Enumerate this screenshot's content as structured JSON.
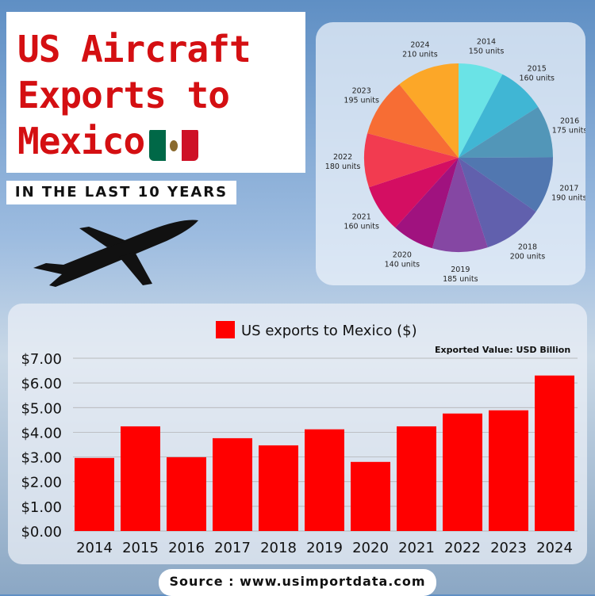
{
  "title": {
    "line1": "US Aircraft",
    "line2": "Exports to",
    "line3": "Mexico"
  },
  "subtitle": "IN THE LAST 10 YEARS",
  "source": "Source : www.usimportdata.com",
  "chart_data": [
    {
      "type": "pie",
      "title": "",
      "unit": "units",
      "categories": [
        "2014",
        "2015",
        "2016",
        "2017",
        "2018",
        "2019",
        "2020",
        "2021",
        "2022",
        "2023",
        "2024"
      ],
      "values": [
        150,
        160,
        175,
        190,
        200,
        185,
        140,
        160,
        180,
        195,
        210
      ],
      "labels": [
        "150 units",
        "160 units",
        "175 units",
        "190 units",
        "200 units",
        "185 units",
        "140 units",
        "160 units",
        "180 units",
        "195 units",
        "210 units"
      ],
      "colors": [
        "#6ae3e6",
        "#40b6d4",
        "#5296b8",
        "#5177b0",
        "#6160ad",
        "#8547a3",
        "#a0127f",
        "#d40e62",
        "#f23b50",
        "#f76d34",
        "#fca728"
      ]
    },
    {
      "type": "bar",
      "title": "",
      "legend": "US exports to Mexico ($)",
      "annotation": "Exported Value: USD Billion",
      "categories": [
        "2014",
        "2015",
        "2016",
        "2017",
        "2018",
        "2019",
        "2020",
        "2021",
        "2022",
        "2023",
        "2024"
      ],
      "values": [
        2.96,
        4.24,
        2.99,
        3.76,
        3.47,
        4.12,
        2.8,
        4.24,
        4.76,
        4.89,
        6.3
      ],
      "ylim": [
        0,
        7
      ],
      "yticks": [
        "$0.00",
        "$1.00",
        "$2.00",
        "$3.00",
        "$4.00",
        "$5.00",
        "$6.00",
        "$7.00"
      ],
      "color": "#ff0000",
      "grid": true,
      "legend_position": "top"
    }
  ]
}
